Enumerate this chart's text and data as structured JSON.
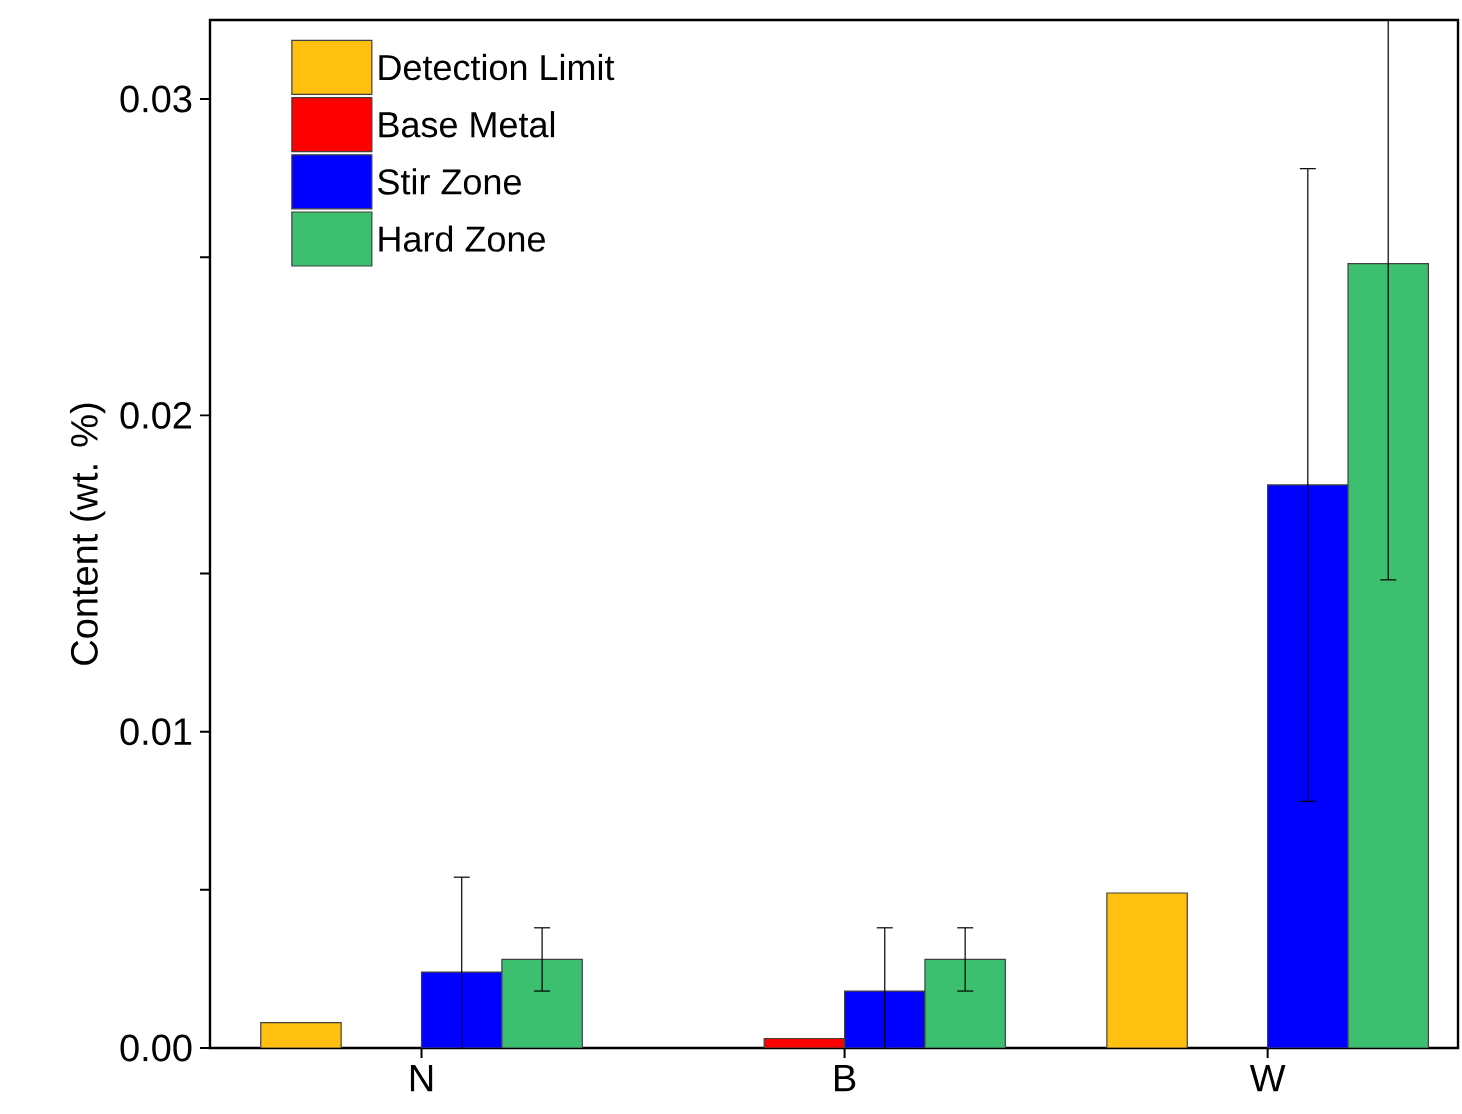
{
  "chart_data": {
    "type": "bar",
    "ylabel": "Content (wt. %)",
    "categories": [
      "N",
      "B",
      "W"
    ],
    "series": [
      {
        "name": "Detection Limit",
        "color": "#ffc010",
        "values": [
          0.0008,
          null,
          0.0049
        ]
      },
      {
        "name": "Base Metal",
        "color": "#ff0000",
        "values": [
          null,
          0.0003,
          null
        ]
      },
      {
        "name": "Stir Zone",
        "color": "#0000ff",
        "values": [
          0.0024,
          0.0018,
          0.0178
        ],
        "errors": [
          0.003,
          0.002,
          0.01
        ]
      },
      {
        "name": "Hard Zone",
        "color": "#3cc070",
        "values": [
          0.0028,
          0.0028,
          0.0248
        ],
        "errors": [
          0.001,
          0.001,
          0.01
        ]
      }
    ],
    "ylim": [
      0,
      0.0325
    ],
    "yticks": [
      {
        "value": 0,
        "label": "0.00"
      },
      {
        "value": 0.005,
        "label": null
      },
      {
        "value": 0.01,
        "label": "0.01"
      },
      {
        "value": 0.015,
        "label": null
      },
      {
        "value": 0.02,
        "label": "0.02"
      },
      {
        "value": 0.025,
        "label": null
      },
      {
        "value": 0.03,
        "label": "0.03"
      }
    ],
    "legend": "top left",
    "grid": false
  }
}
